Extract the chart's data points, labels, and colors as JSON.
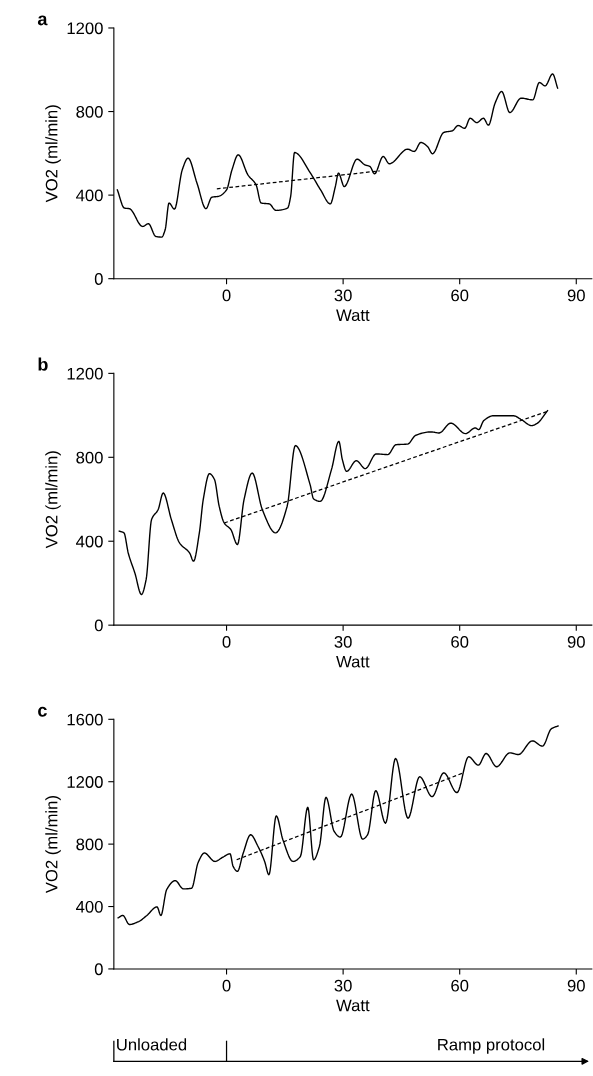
{
  "chart_data": [
    {
      "type": "line",
      "title": "a",
      "xlabel": "Watt",
      "ylabel": "VO2 (ml/min)",
      "xlim": [
        -29,
        94
      ],
      "xticks": [
        0,
        30,
        60,
        90
      ],
      "ylim": [
        0,
        1200
      ],
      "yticks": [
        0,
        400,
        800,
        1200
      ],
      "grid": false,
      "legend": false,
      "series": [
        {
          "color": "#000000",
          "line_style": "solid",
          "x": [
            -28.1,
            -26.3,
            -25.0,
            -21.6,
            -20.1,
            -18.2,
            -16.7,
            -15.8,
            -14.8,
            -13.4,
            -11.4,
            -9.9,
            -7.6,
            -5.3,
            -3.8,
            -2.1,
            0,
            1.4,
            3.0,
            5.5,
            7.6,
            8.9,
            11.0,
            12.7,
            15.7,
            16.5,
            17.5,
            21.6,
            24.2,
            26.7,
            28.0,
            28.8,
            30.3,
            33.6,
            35.6,
            36.9,
            38.1,
            40.3,
            41.9,
            46.6,
            48.3,
            50.0,
            51.7,
            53.0,
            55.9,
            58.1,
            59.6,
            61.3,
            62.7,
            64.4,
            66.1,
            67.4,
            69.1,
            70.8,
            72.9,
            75.8,
            78.8,
            80.5,
            82.0,
            83.9,
            85.2
          ],
          "values": [
            425,
            338,
            335,
            250,
            263,
            202,
            199,
            234,
            362,
            333,
            521,
            577,
            457,
            335,
            390,
            394,
            425,
            521,
            593,
            497,
            449,
            362,
            358,
            327,
            338,
            394,
            604,
            505,
            425,
            358,
            441,
            505,
            441,
            572,
            545,
            537,
            502,
            585,
            550,
            620,
            609,
            652,
            633,
            598,
            700,
            708,
            733,
            720,
            768,
            747,
            768,
            735,
            840,
            896,
            795,
            864,
            856,
            939,
            923,
            980,
            912
          ]
        },
        {
          "color": "#000000",
          "line_style": "dashed",
          "x": [
            -2.5,
            39.4
          ],
          "values": [
            430,
            516
          ]
        }
      ]
    },
    {
      "type": "line",
      "title": "b",
      "xlabel": "Watt",
      "ylabel": "VO2 (ml/min)",
      "xlim": [
        -29,
        94
      ],
      "xticks": [
        0,
        30,
        60,
        90
      ],
      "ylim": [
        0,
        1200
      ],
      "yticks": [
        0,
        400,
        800,
        1200
      ],
      "grid": false,
      "legend": false,
      "series": [
        {
          "color": "#000000",
          "line_style": "solid",
          "x": [
            -27.6,
            -26.4,
            -25.3,
            -23.6,
            -21.9,
            -20.7,
            -19.3,
            -17.6,
            -16.3,
            -14.2,
            -12.1,
            -9.5,
            -8.5,
            -7.0,
            -6.0,
            -4.4,
            -3.1,
            -1.9,
            -0.6,
            1.1,
            2.8,
            4.5,
            6.6,
            9.2,
            12.6,
            15.6,
            17.7,
            21.5,
            22.4,
            24.1,
            27.0,
            28.9,
            29.8,
            30.9,
            33.4,
            35.7,
            38.5,
            41.5,
            43.6,
            46.6,
            48.7,
            52.6,
            54.7,
            57.7,
            61.5,
            64.0,
            64.9,
            66.2,
            68.7,
            73.8,
            75.9,
            78.5,
            79.8,
            82.6
          ],
          "values": [
            448,
            440,
            344,
            249,
            146,
            217,
            503,
            551,
            630,
            503,
            392,
            344,
            305,
            440,
            598,
            722,
            694,
            567,
            487,
            456,
            384,
            598,
            725,
            551,
            440,
            567,
            856,
            670,
            602,
            590,
            741,
            876,
            789,
            733,
            784,
            746,
            816,
            813,
            860,
            863,
            905,
            921,
            916,
            963,
            913,
            940,
            932,
            975,
            998,
            998,
            979,
            951,
            960,
            1022
          ]
        },
        {
          "color": "#000000",
          "line_style": "dashed",
          "x": [
            -0.6,
            82.6
          ],
          "values": [
            487,
            1019
          ]
        }
      ]
    },
    {
      "type": "line",
      "title": "c",
      "xlabel": "Watt",
      "ylabel": "VO2 (ml/min)",
      "xlim": [
        -29,
        94
      ],
      "xticks": [
        0,
        30,
        60,
        90
      ],
      "ylim": [
        0,
        1600
      ],
      "yticks": [
        0,
        400,
        800,
        1200,
        1600
      ],
      "grid": false,
      "legend": false,
      "series": [
        {
          "color": "#000000",
          "line_style": "solid",
          "x": [
            -27.9,
            -26.7,
            -25.0,
            -22.6,
            -20.5,
            -17.9,
            -16.9,
            -15.4,
            -13.2,
            -11.1,
            -9.0,
            -7.3,
            -5.7,
            -3.0,
            -0.9,
            0.9,
            1.7,
            2.8,
            4.3,
            6.2,
            8.1,
            9.8,
            10.9,
            12.8,
            14.5,
            17.1,
            19.0,
            20.9,
            22.4,
            23.9,
            25.6,
            27.7,
            29.3,
            32.2,
            35.0,
            36.3,
            38.4,
            40.9,
            43.5,
            46.7,
            49.7,
            52.9,
            55.9,
            59.3,
            62.3,
            64.8,
            66.8,
            69.5,
            72.9,
            75.1,
            78.7,
            81.3,
            83.6,
            85.3
          ],
          "values": [
            328,
            343,
            285,
            304,
            343,
            398,
            343,
            509,
            566,
            513,
            517,
            683,
            743,
            689,
            717,
            738,
            657,
            626,
            743,
            860,
            785,
            689,
            604,
            981,
            828,
            689,
            721,
            1036,
            700,
            785,
            1100,
            881,
            845,
            1121,
            832,
            860,
            1143,
            934,
            1349,
            966,
            1232,
            1104,
            1257,
            1130,
            1360,
            1306,
            1381,
            1296,
            1385,
            1374,
            1462,
            1428,
            1540,
            1557
          ]
        },
        {
          "color": "#000000",
          "line_style": "dashed",
          "x": [
            2.6,
            61.0
          ],
          "values": [
            700,
            1257
          ]
        }
      ],
      "annotations": [
        "Unloaded",
        "Ramp protocol"
      ]
    }
  ]
}
